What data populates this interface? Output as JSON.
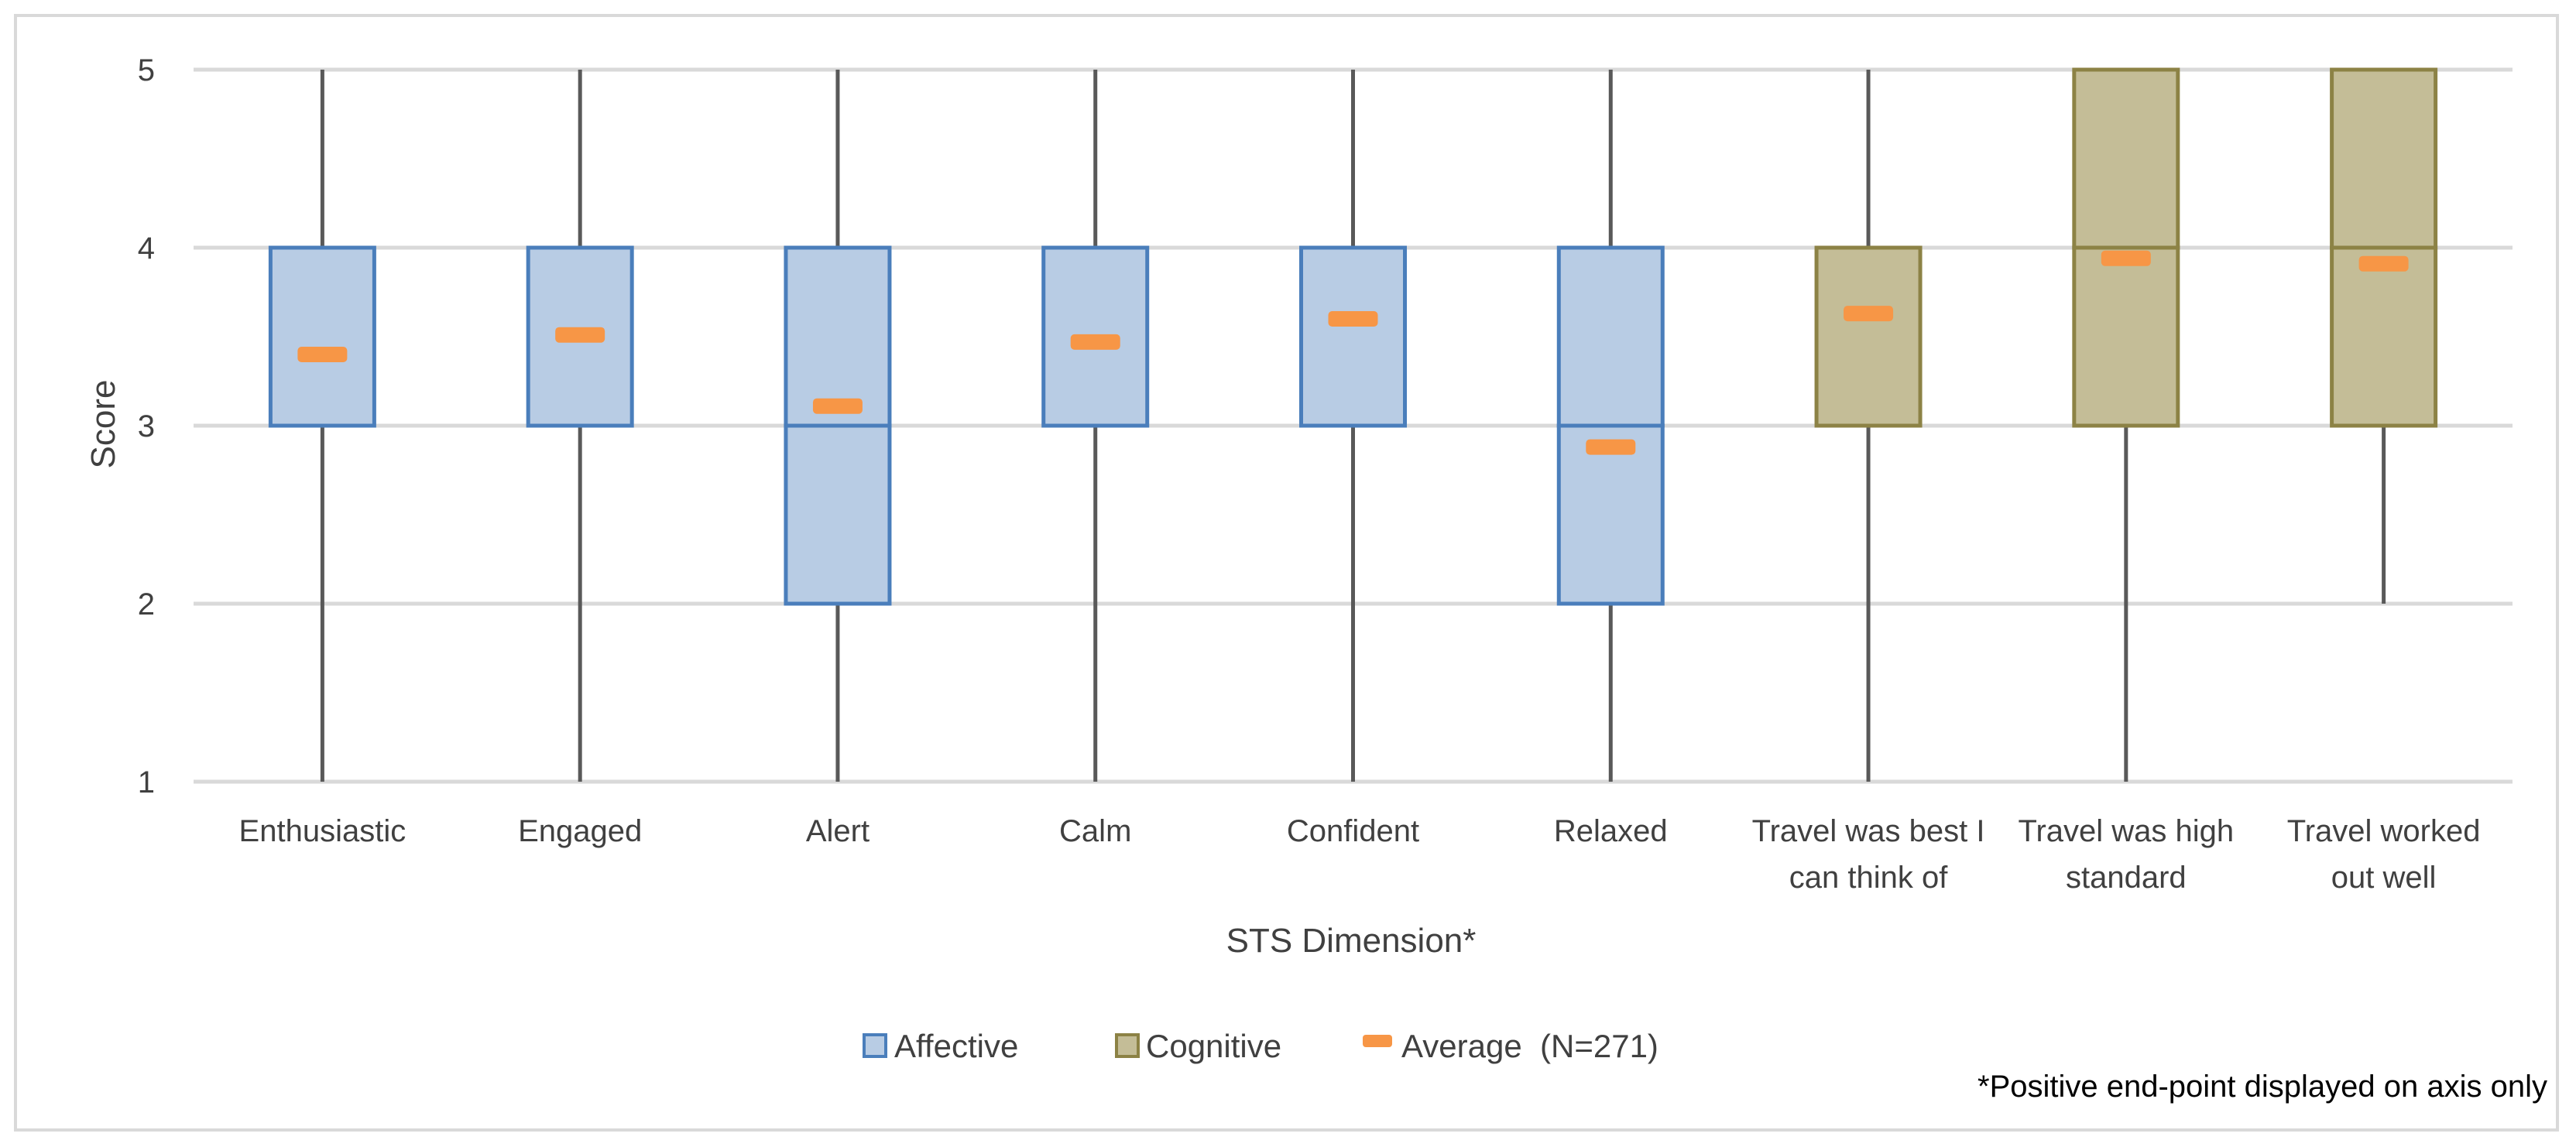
{
  "chart_data": {
    "type": "boxplot",
    "title": "",
    "xlabel": "STS Dimension*",
    "ylabel": "Score",
    "ylim": [
      1,
      5
    ],
    "yticks": [
      1,
      2,
      3,
      4,
      5
    ],
    "grid": true,
    "legend_position": "bottom",
    "footnote": "*Positive end-point displayed on axis only",
    "colors": {
      "affective_fill": "#b8cce4",
      "affective_stroke": "#4a7ebb",
      "cognitive_fill": "#c4bd97",
      "cognitive_stroke": "#8c8245",
      "average": "#f79646",
      "whisker": "#595959",
      "grid": "#d9d9d9"
    },
    "legend": [
      {
        "key": "affective",
        "label": "Affective"
      },
      {
        "key": "cognitive",
        "label": "Cognitive"
      },
      {
        "key": "average",
        "label": "Average  (N=271)"
      }
    ],
    "series": [
      {
        "name": "Affective",
        "key": "affective"
      },
      {
        "name": "Cognitive",
        "key": "cognitive"
      }
    ],
    "categories": [
      {
        "label": [
          "Enthusiastic"
        ],
        "group": "affective",
        "min": 1,
        "q1": 3,
        "median": 4,
        "q3": 4,
        "max": 5,
        "mean": 3.4
      },
      {
        "label": [
          "Engaged"
        ],
        "group": "affective",
        "min": 1,
        "q1": 3,
        "median": 4,
        "q3": 4,
        "max": 5,
        "mean": 3.51
      },
      {
        "label": [
          "Alert"
        ],
        "group": "affective",
        "min": 1,
        "q1": 2,
        "median": 3,
        "q3": 4,
        "max": 5,
        "mean": 3.11
      },
      {
        "label": [
          "Calm"
        ],
        "group": "affective",
        "min": 1,
        "q1": 3,
        "median": 4,
        "q3": 4,
        "max": 5,
        "mean": 3.47
      },
      {
        "label": [
          "Confident"
        ],
        "group": "affective",
        "min": 1,
        "q1": 3,
        "median": 4,
        "q3": 4,
        "max": 5,
        "mean": 3.6
      },
      {
        "label": [
          "Relaxed"
        ],
        "group": "affective",
        "min": 1,
        "q1": 2,
        "median": 3,
        "q3": 4,
        "max": 5,
        "mean": 2.88
      },
      {
        "label": [
          "Travel was best I",
          "can think of"
        ],
        "group": "cognitive",
        "min": 1,
        "q1": 3,
        "median": 4,
        "q3": 4,
        "max": 5,
        "mean": 3.63
      },
      {
        "label": [
          "Travel was high",
          "standard"
        ],
        "group": "cognitive",
        "min": 1,
        "q1": 3,
        "median": 4,
        "q3": 5,
        "max": 5,
        "mean": 3.94
      },
      {
        "label": [
          "Travel worked",
          "out well"
        ],
        "group": "cognitive",
        "min": 2,
        "q1": 3,
        "median": 4,
        "q3": 5,
        "max": 5,
        "mean": 3.91
      }
    ]
  }
}
